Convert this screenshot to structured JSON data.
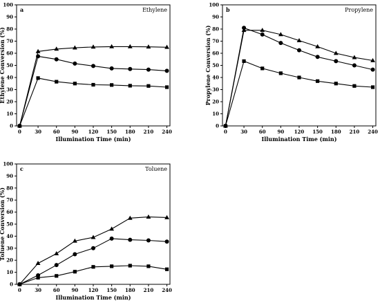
{
  "chart_data": [
    {
      "type": "line",
      "panel_label": "a",
      "title": "Ethylene",
      "xlabel": "Illumination Time (min)",
      "ylabel": "Ethylene Conversion (%)",
      "x": [
        0,
        30,
        60,
        90,
        120,
        150,
        180,
        210,
        240
      ],
      "xlim": [
        -5,
        245
      ],
      "ylim": [
        0,
        100
      ],
      "xticks": [
        "0",
        "30",
        "60",
        "90",
        "120",
        "150",
        "180",
        "210",
        "240"
      ],
      "yticks": [
        "0",
        "10",
        "20",
        "30",
        "40",
        "50",
        "60",
        "70",
        "80",
        "90",
        "100"
      ],
      "series": [
        {
          "marker": "triangle",
          "values": [
            0,
            61.5,
            63.5,
            64.5,
            65.2,
            65.5,
            65.5,
            65.3,
            65
          ]
        },
        {
          "marker": "circle",
          "values": [
            0,
            57.5,
            55,
            51.5,
            49.5,
            47.5,
            47,
            46.5,
            45.5
          ]
        },
        {
          "marker": "square",
          "values": [
            0,
            39.5,
            36.5,
            35,
            34,
            33.8,
            33.2,
            33,
            32
          ]
        }
      ]
    },
    {
      "type": "line",
      "panel_label": "b",
      "title": "Propylene",
      "xlabel": "Illumination Time (min)",
      "ylabel": "Propylene Conversion (%)",
      "x": [
        0,
        30,
        60,
        90,
        120,
        150,
        180,
        210,
        240
      ],
      "xlim": [
        -5,
        245
      ],
      "ylim": [
        0,
        100
      ],
      "xticks": [
        "0",
        "30",
        "60",
        "90",
        "120",
        "150",
        "180",
        "210",
        "240"
      ],
      "yticks": [
        "0",
        "10",
        "20",
        "30",
        "40",
        "50",
        "60",
        "70",
        "80",
        "90",
        "100"
      ],
      "series": [
        {
          "marker": "triangle",
          "values": [
            0,
            79,
            79,
            75.5,
            70.5,
            65.5,
            60,
            56.5,
            54
          ]
        },
        {
          "marker": "circle",
          "values": [
            0,
            81,
            75.5,
            68.5,
            62.5,
            57,
            53.5,
            50,
            46.5
          ]
        },
        {
          "marker": "square",
          "values": [
            0,
            53.5,
            47.5,
            43.5,
            40,
            37,
            35,
            33,
            32
          ]
        }
      ]
    },
    {
      "type": "line",
      "panel_label": "c",
      "title": "Toluene",
      "xlabel": "Illumination Time (min)",
      "ylabel": "Toluene Conversion (%)",
      "x": [
        0,
        30,
        60,
        90,
        120,
        150,
        180,
        210,
        240
      ],
      "xlim": [
        -5,
        245
      ],
      "ylim": [
        0,
        100
      ],
      "xticks": [
        "0",
        "30",
        "60",
        "90",
        "120",
        "150",
        "180",
        "210",
        "240"
      ],
      "yticks": [
        "0",
        "10",
        "20",
        "30",
        "40",
        "50",
        "60",
        "70",
        "80",
        "90",
        "100"
      ],
      "series": [
        {
          "marker": "triangle",
          "values": [
            0,
            17.5,
            25.5,
            36,
            39,
            46,
            55,
            56,
            55.5
          ]
        },
        {
          "marker": "circle",
          "values": [
            0,
            7.5,
            16,
            25,
            30,
            38,
            37,
            36.5,
            35.5
          ]
        },
        {
          "marker": "square",
          "values": [
            0,
            5.5,
            7,
            10.5,
            14.5,
            15,
            15.5,
            15,
            12.5
          ]
        }
      ]
    }
  ]
}
